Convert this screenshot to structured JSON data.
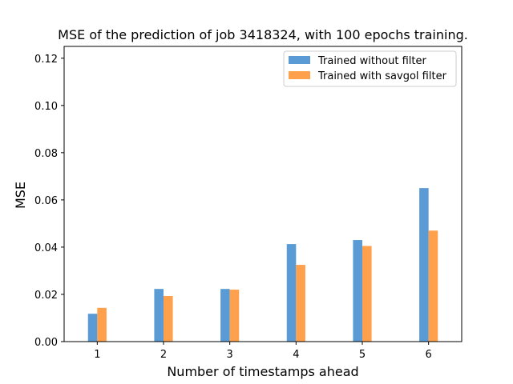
{
  "chart_data": {
    "type": "bar",
    "title": "MSE of the prediction of job 3418324, with 100 epochs training.",
    "xlabel": "Number of timestamps ahead",
    "ylabel": "MSE",
    "categories": [
      "1",
      "2",
      "3",
      "4",
      "5",
      "6"
    ],
    "series": [
      {
        "name": "Trained without filter",
        "color": "#5b9bd5",
        "values": [
          0.0118,
          0.0223,
          0.0223,
          0.0413,
          0.043,
          0.065
        ]
      },
      {
        "name": "Trained with savgol filter",
        "color": "#ffa04d",
        "values": [
          0.0143,
          0.0193,
          0.022,
          0.0325,
          0.0405,
          0.047
        ]
      }
    ],
    "ylim": [
      0,
      0.125
    ],
    "yticks": [
      0.0,
      0.02,
      0.04,
      0.06,
      0.08,
      0.1,
      0.12
    ],
    "ytick_labels": [
      "0.00",
      "0.02",
      "0.04",
      "0.06",
      "0.08",
      "0.10",
      "0.12"
    ],
    "xlim": [
      0.5,
      6.5
    ],
    "grid": false,
    "legend_position": "top-right"
  }
}
